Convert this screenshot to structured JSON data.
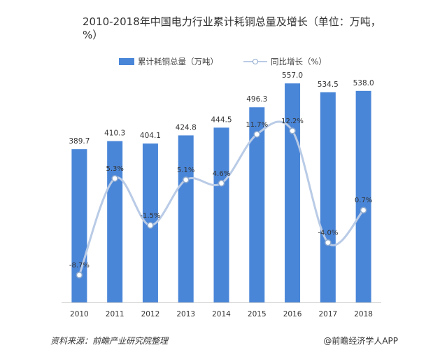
{
  "chart_data": {
    "type": "bar+line",
    "title": "2010-2018年中国电力行业累计耗铜总量及增长（单位：万吨，%）",
    "categories": [
      "2010",
      "2011",
      "2012",
      "2013",
      "2014",
      "2015",
      "2016",
      "2017",
      "2018"
    ],
    "series": [
      {
        "name": "累计耗铜总量（万吨）",
        "kind": "bar",
        "values": [
          389.7,
          410.3,
          404.1,
          424.8,
          444.5,
          496.3,
          557.0,
          534.5,
          538.0
        ],
        "labels": [
          "389.7",
          "410.3",
          "404.1",
          "424.8",
          "444.5",
          "496.3",
          "557.0",
          "534.5",
          "538.0"
        ]
      },
      {
        "name": "同比增长（%）",
        "kind": "line",
        "values": [
          -8.7,
          5.3,
          -1.5,
          5.1,
          4.6,
          11.7,
          12.2,
          -4.0,
          0.7
        ],
        "labels": [
          "-8.7%",
          "5.3%",
          "-1.5%",
          "5.1%",
          "4.6%",
          "11.7%",
          "12.2%",
          "-4.0%",
          "0.7%"
        ]
      }
    ],
    "ylim_left": [
      0,
      600
    ],
    "ylim_right": [
      -15,
      20
    ],
    "legend_position": "top-center",
    "colors": {
      "bar": "#4a86d8",
      "line": "#b9cbe6",
      "marker_stroke": "#8fa9cc",
      "text": "#333333"
    }
  },
  "footer": {
    "source": "资料来源：前瞻产业研究院整理",
    "brand": "@前瞻经济学人APP"
  }
}
